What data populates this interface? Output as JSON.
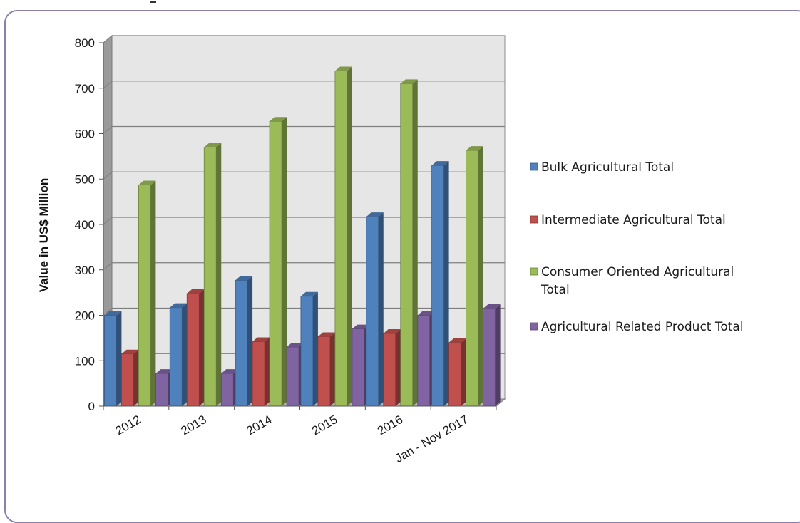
{
  "chart_data": {
    "type": "bar",
    "title": "",
    "ylabel": "Value in US$ Million",
    "xlabel": "",
    "ylim": [
      0,
      800
    ],
    "yticks": [
      "0",
      "100",
      "200",
      "300",
      "400",
      "500",
      "600",
      "700",
      "800"
    ],
    "categories": [
      "2012",
      "2013",
      "2014",
      "2015",
      "2016",
      "Jan - Nov 2017"
    ],
    "series": [
      {
        "name": "Bulk Agricultural Total",
        "color": "#4f81bd",
        "values": [
          200,
          217,
          277,
          242,
          417,
          530
        ]
      },
      {
        "name": "Intermediate Agricultural Total",
        "color": "#c0504d",
        "values": [
          115,
          248,
          142,
          153,
          160,
          140
        ]
      },
      {
        "name": "Consumer Oriented Agricultural Total",
        "color": "#9bbb59",
        "values": [
          487,
          570,
          627,
          738,
          710,
          563
        ]
      },
      {
        "name": "Agricultural Related Product Total",
        "color": "#8064a2",
        "values": [
          72,
          72,
          130,
          170,
          200,
          215
        ]
      }
    ],
    "grid": true,
    "legend": "right",
    "legend_lines": [
      [
        "Bulk Agricultural Total"
      ],
      [
        "Intermediate Agricultural Total"
      ],
      [
        "Consumer Oriented Agricultural",
        "Total"
      ],
      [
        "Agricultural Related Product Total"
      ]
    ]
  }
}
